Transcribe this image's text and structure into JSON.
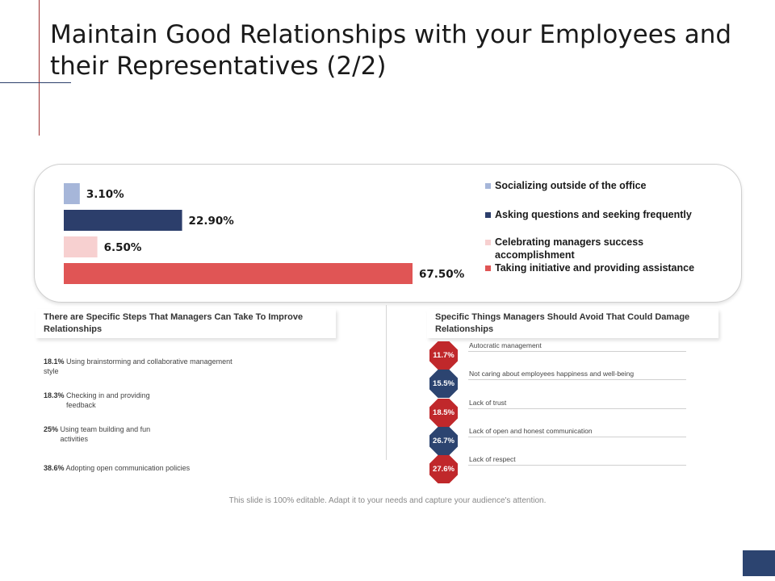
{
  "title": "Maintain Good Relationships with your Employees and their Representatives (2/2)",
  "chart_data": {
    "type": "bar",
    "orientation": "horizontal",
    "categories": [
      "Socializing outside of the office",
      "Asking questions and seeking frequently",
      "Celebrating managers success accomplishment",
      "Taking initiative and providing assistance"
    ],
    "values": [
      3.1,
      22.9,
      6.5,
      67.5
    ],
    "labels": [
      "3.10%",
      "22.90%",
      "6.50%",
      "67.50%"
    ],
    "colors": [
      "#a6b6d9",
      "#2c3e6b",
      "#f7d0d0",
      "#e05555"
    ],
    "legend_position": "right",
    "xlim": [
      0,
      67.5
    ]
  },
  "left_section": {
    "header": "There are Specific Steps That Managers Can Take To Improve Relationships",
    "items": [
      {
        "pct": "18.1%",
        "text": "Using brainstorming and collaborative management style"
      },
      {
        "pct": "18.3%",
        "text": "Checking in and providing feedback"
      },
      {
        "pct": "25%",
        "text": "Using team building and fun activities"
      },
      {
        "pct": "38.6%",
        "text": "Adopting open communication policies"
      }
    ]
  },
  "right_section": {
    "header": "Specific Things Managers Should Avoid That Could Damage Relationships",
    "items": [
      {
        "pct": "11.7%",
        "text": "Autocratic management",
        "color": "#c0282b"
      },
      {
        "pct": "15.5%",
        "text": "Not caring about employees happiness and well-being",
        "color": "#2c4470"
      },
      {
        "pct": "18.5%",
        "text": "Lack of trust",
        "color": "#c0282b"
      },
      {
        "pct": "26.7%",
        "text": "Lack of open and honest communication",
        "color": "#2c4470"
      },
      {
        "pct": "27.6%",
        "text": "Lack of respect",
        "color": "#c0282b"
      }
    ]
  },
  "footer": "This slide is 100% editable.  Adapt it to your needs and capture your audience's attention."
}
